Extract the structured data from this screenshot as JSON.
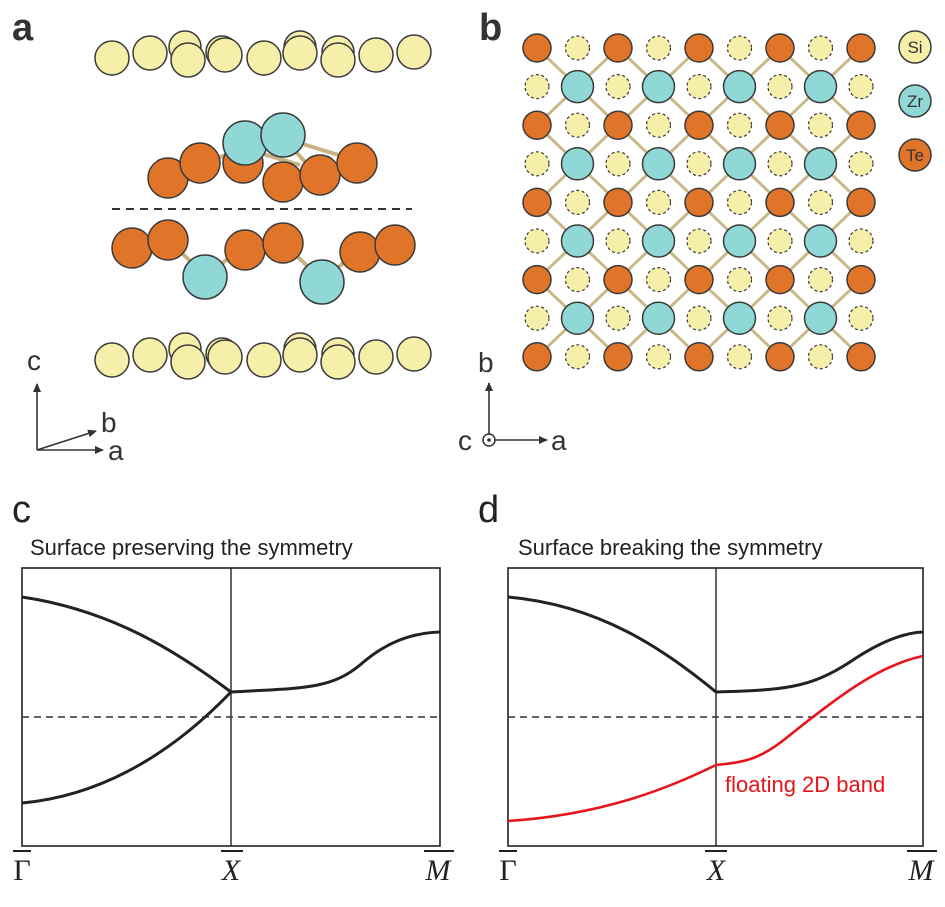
{
  "colors": {
    "si_fill": "#f5efaa",
    "zr_fill": "#8fd8d6",
    "te_fill": "#e07428",
    "outline": "#3a3a3a",
    "bond": "#c7b480",
    "band": "#222222",
    "floating_band": "#e8141c"
  },
  "panel_a": {
    "letter": "a",
    "axes": {
      "c": "c",
      "b": "b",
      "a": "a"
    }
  },
  "panel_b": {
    "letter": "b",
    "axes": {
      "b": "b",
      "c": "c",
      "a": "a"
    },
    "legend": [
      {
        "label": "Si",
        "element": "si"
      },
      {
        "label": "Zr",
        "element": "zr"
      },
      {
        "label": "Te",
        "element": "te"
      }
    ]
  },
  "panel_c": {
    "letter": "c",
    "title": "Surface preserving the symmetry",
    "kpoints": [
      "Γ",
      "X",
      "M"
    ]
  },
  "panel_d": {
    "letter": "d",
    "title": "Surface breaking the symmetry",
    "kpoints": [
      "Γ",
      "X",
      "M"
    ],
    "annotation": "floating 2D band"
  }
}
